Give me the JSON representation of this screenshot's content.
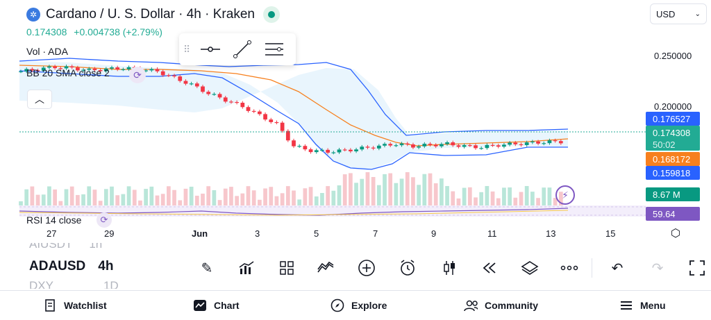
{
  "header": {
    "title": "Cardano / U. S. Dollar · 4h · Kraken",
    "price": "0.174308",
    "change": "+0.004738 (+2.79%)",
    "currency": "USD"
  },
  "legend": {
    "volume": "Vol · ADA",
    "bb": "BB 20 SMA close 2",
    "rsi": "RSI 14 close"
  },
  "price_axis": {
    "ticks": [
      "0.250000",
      "0.200000"
    ],
    "tags": [
      {
        "label": "0.176527",
        "color": "#2962ff"
      },
      {
        "label": "0.174308",
        "sub": "50:02",
        "color": "#22ab94"
      },
      {
        "label": "0.168172",
        "color": "#f7801e"
      },
      {
        "label": "0.159818",
        "color": "#2962ff"
      },
      {
        "label": "8.67 M",
        "color": "#089981"
      },
      {
        "label": "59.64",
        "color": "#7e57c2"
      }
    ]
  },
  "date_axis": [
    "27",
    "29",
    "Jun",
    "3",
    "5",
    "7",
    "9",
    "11",
    "13",
    "15"
  ],
  "symbols": {
    "above": "AIUSDT",
    "above_tf": "1h",
    "current": "ADAUSD",
    "current_tf": "4h",
    "below": "DXY",
    "below_tf": "1D"
  },
  "toolbar": {
    "tools": [
      "pencil-icon",
      "chart-add-icon",
      "grid-icon",
      "pattern-icon",
      "plus-circle-icon",
      "alarm-icon",
      "candle-icon",
      "replay-icon",
      "layers-icon",
      "more-icon",
      "undo-icon",
      "redo-icon",
      "fullscreen-icon"
    ]
  },
  "bottom_nav": [
    {
      "label": "Watchlist",
      "icon": "watchlist-icon"
    },
    {
      "label": "Chart",
      "icon": "chart-icon"
    },
    {
      "label": "Explore",
      "icon": "compass-icon"
    },
    {
      "label": "Community",
      "icon": "community-icon"
    },
    {
      "label": "Menu",
      "icon": "menu-icon"
    }
  ],
  "chart_data": {
    "type": "candlestick",
    "candles_close_approx": [
      0.238,
      0.24,
      0.242,
      0.241,
      0.239,
      0.24,
      0.241,
      0.24,
      0.238,
      0.232,
      0.226,
      0.218,
      0.212,
      0.206,
      0.198,
      0.19,
      0.17,
      0.166,
      0.165,
      0.166,
      0.168,
      0.17,
      0.172,
      0.17,
      0.171,
      0.172,
      0.17,
      0.169,
      0.171,
      0.172,
      0.173,
      0.174
    ],
    "bb_upper_approx": [
      0.244,
      0.243,
      0.242,
      0.241,
      0.24,
      0.24,
      0.241,
      0.243,
      0.247,
      0.25,
      0.252,
      0.25,
      0.245,
      0.235,
      0.22,
      0.2,
      0.18,
      0.176,
      0.176,
      0.176,
      0.176,
      0.176,
      0.177
    ],
    "bb_lower_approx": [
      0.234,
      0.234,
      0.235,
      0.236,
      0.237,
      0.236,
      0.234,
      0.228,
      0.215,
      0.198,
      0.18,
      0.163,
      0.152,
      0.148,
      0.15,
      0.16,
      0.163,
      0.164,
      0.163,
      0.161,
      0.16,
      0.16,
      0.16
    ],
    "bb_basis_approx": [
      0.239,
      0.239,
      0.239,
      0.239,
      0.238,
      0.237,
      0.235,
      0.23,
      0.222,
      0.212,
      0.2,
      0.188,
      0.178,
      0.172,
      0.17,
      0.17,
      0.17,
      0.169,
      0.169,
      0.168,
      0.168,
      0.168,
      0.168
    ],
    "volume_last": "8.67 M",
    "rsi_last": 59.64,
    "ylim": [
      0.14,
      0.26
    ]
  }
}
